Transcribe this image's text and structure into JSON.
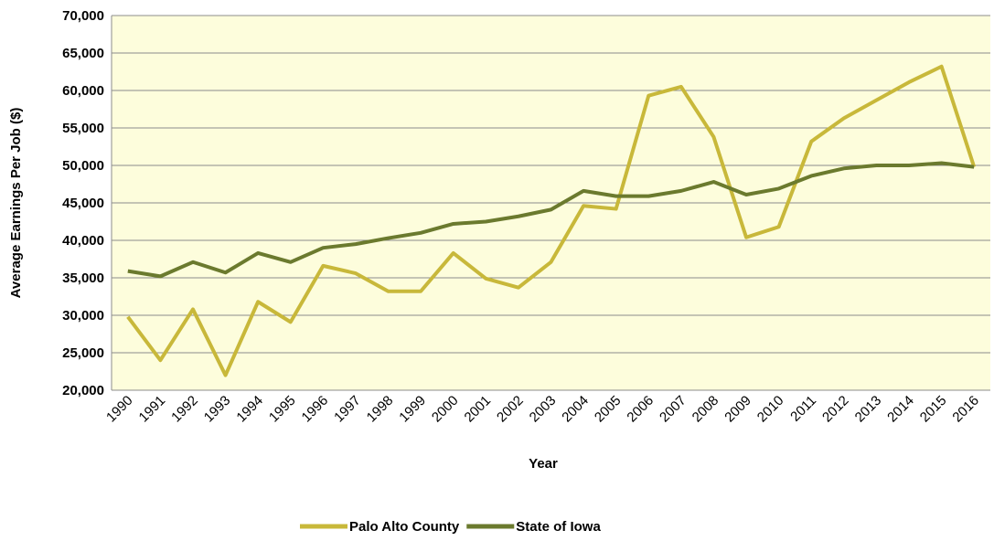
{
  "chart_data": {
    "type": "line",
    "x_label": "Year",
    "y_label": "Average Earnings Per Job ($)",
    "categories": [
      "1990",
      "1991",
      "1992",
      "1993",
      "1994",
      "1995",
      "1996",
      "1997",
      "1998",
      "1999",
      "2000",
      "2001",
      "2002",
      "2003",
      "2004",
      "2005",
      "2006",
      "2007",
      "2008",
      "2009",
      "2010",
      "2011",
      "2012",
      "2013",
      "2014",
      "2015",
      "2016"
    ],
    "series": [
      {
        "name": "Palo Alto County",
        "color": "#c8b83a",
        "values": [
          29800,
          24000,
          30800,
          22000,
          31800,
          29100,
          36600,
          35600,
          33200,
          33200,
          38300,
          34900,
          33700,
          37100,
          44600,
          44200,
          59300,
          60500,
          53800,
          40400,
          41800,
          53200,
          56300,
          58700,
          61100,
          63200,
          49800
        ]
      },
      {
        "name": "State of Iowa",
        "color": "#6b7a2e",
        "values": [
          35900,
          35200,
          37100,
          35700,
          38300,
          37100,
          39000,
          39500,
          40300,
          41000,
          42200,
          42500,
          43200,
          44100,
          46600,
          45900,
          45900,
          46600,
          47800,
          46100,
          46900,
          48600,
          49600,
          50000,
          50000,
          50300,
          49800
        ]
      }
    ],
    "ylim": [
      20000,
      70000
    ],
    "yticks": [
      {
        "value": 20000,
        "label": "20,000"
      },
      {
        "value": 25000,
        "label": "25,000"
      },
      {
        "value": 30000,
        "label": "30,000"
      },
      {
        "value": 35000,
        "label": "35,000"
      },
      {
        "value": 40000,
        "label": "40,000"
      },
      {
        "value": 45000,
        "label": "45,000"
      },
      {
        "value": 50000,
        "label": "50,000"
      },
      {
        "value": 55000,
        "label": "55,000"
      },
      {
        "value": 60000,
        "label": "60,000"
      },
      {
        "value": 65000,
        "label": "65,000"
      },
      {
        "value": 70000,
        "label": "70,000"
      }
    ],
    "grid": true,
    "legend": "bottom",
    "background": "#fdfddc"
  }
}
